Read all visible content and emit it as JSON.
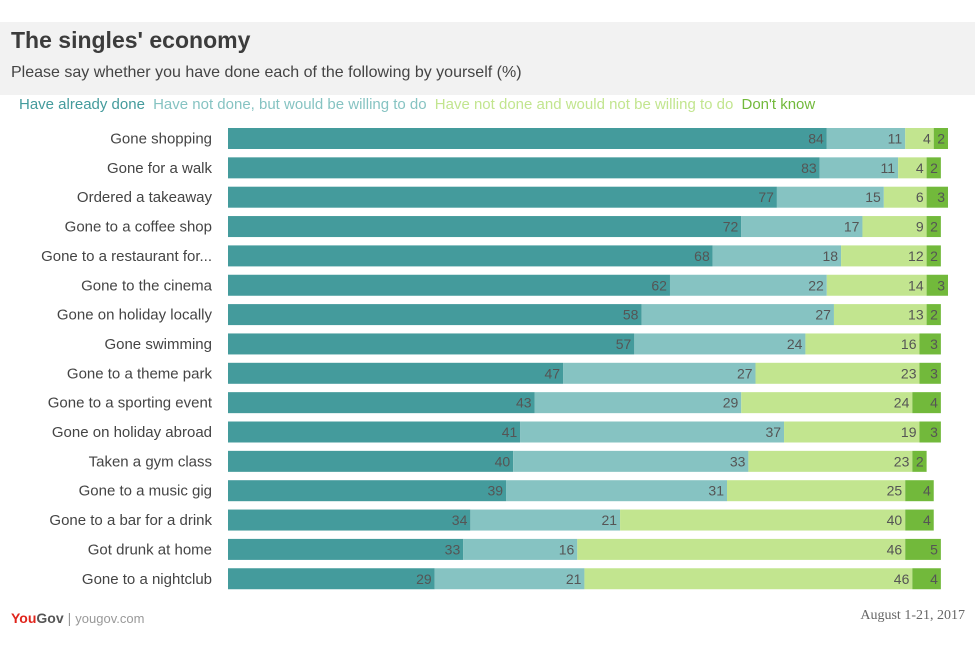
{
  "colors": {
    "done": "#449b9c",
    "willing": "#86c3c2",
    "not_willing": "#c2e58f",
    "dont_know": "#72b93b",
    "value_text": "#555555",
    "label_text": "#444444",
    "header_bg": "#f2f2f2"
  },
  "chart_data": {
    "type": "bar",
    "orientation": "horizontal",
    "stacked": true,
    "title": "The singles' economy",
    "subtitle": "Please say whether you have done each of the following by yourself (%)",
    "legend_position": "top",
    "categories": [
      "Gone shopping",
      "Gone for a walk",
      "Ordered a takeaway",
      "Gone to a coffee shop",
      "Gone to a restaurant for...",
      "Gone to the cinema",
      "Gone on holiday locally",
      "Gone swimming",
      "Gone to a theme park",
      "Gone to a sporting event",
      "Gone on holiday abroad",
      "Taken a gym class",
      "Gone to a music gig",
      "Gone to a bar for a drink",
      "Got drunk at home",
      "Gone to a nightclub"
    ],
    "series": [
      {
        "name": "Have already done",
        "color": "#449b9c",
        "values": [
          84,
          83,
          77,
          72,
          68,
          62,
          58,
          57,
          47,
          43,
          41,
          40,
          39,
          34,
          33,
          29
        ]
      },
      {
        "name": "Have not done, but would be willing to do",
        "color": "#86c3c2",
        "values": [
          11,
          11,
          15,
          17,
          18,
          22,
          27,
          24,
          27,
          29,
          37,
          33,
          31,
          21,
          16,
          21
        ]
      },
      {
        "name": "Have not done and would not be willing to do",
        "color": "#c2e58f",
        "values": [
          4,
          4,
          6,
          9,
          12,
          14,
          13,
          16,
          23,
          24,
          19,
          23,
          25,
          40,
          46,
          46
        ]
      },
      {
        "name": "Don't know",
        "color": "#72b93b",
        "values": [
          2,
          2,
          3,
          2,
          2,
          3,
          2,
          3,
          3,
          4,
          3,
          2,
          4,
          4,
          5,
          4
        ]
      }
    ],
    "xlim": [
      0,
      101
    ],
    "grid": false
  },
  "footer": {
    "logo_you": "You",
    "logo_gov": "Gov",
    "separator": "|",
    "url": "yougov.com",
    "date": "August 1-21, 2017"
  }
}
